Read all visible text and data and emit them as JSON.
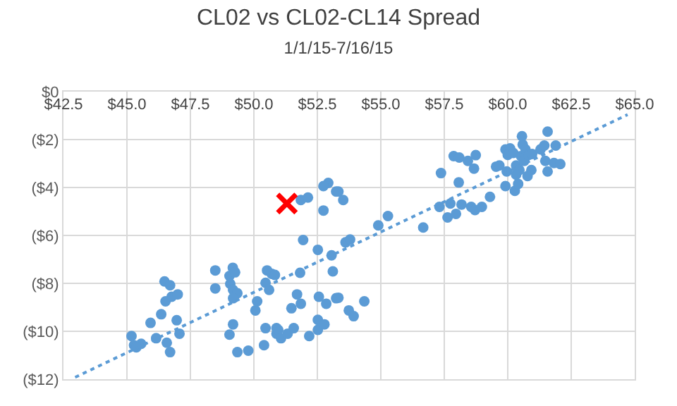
{
  "chart_data": {
    "type": "scatter",
    "title": "CL02 vs CL02-CL14 Spread",
    "subtitle": "1/1/15-7/16/15",
    "xlim": [
      42.5,
      65
    ],
    "xticks": [
      {
        "value": 42.5,
        "label": "$42.5"
      },
      {
        "value": 45,
        "label": "$45.0"
      },
      {
        "value": 47.5,
        "label": "$47.5"
      },
      {
        "value": 50,
        "label": "$50.0"
      },
      {
        "value": 52.5,
        "label": "$52.5"
      },
      {
        "value": 55,
        "label": "$55.0"
      },
      {
        "value": 57.5,
        "label": "$57.5"
      },
      {
        "value": 60,
        "label": "$60.0"
      },
      {
        "value": 62.5,
        "label": "$62.5"
      },
      {
        "value": 65,
        "label": "$65.0"
      }
    ],
    "ylim": [
      -12,
      0
    ],
    "yticks": [
      {
        "value": -12,
        "label": "($12)"
      },
      {
        "value": -10,
        "label": "($10)"
      },
      {
        "value": -8,
        "label": "($8)"
      },
      {
        "value": -6,
        "label": "($6)"
      },
      {
        "value": -4,
        "label": "($4)"
      },
      {
        "value": -2,
        "label": "($2)"
      },
      {
        "value": 0,
        "label": "$0"
      }
    ],
    "grid": true,
    "series": [
      {
        "type": "scatter",
        "marker": "circle",
        "color": "#5b9bd5",
        "x": [
          45.18,
          45.28,
          45.56,
          45.37,
          45.93,
          46.15,
          46.35,
          46.48,
          46.7,
          46.52,
          46.76,
          47.0,
          46.57,
          46.7,
          46.96,
          47.07,
          48.48,
          48.48,
          49.04,
          49.17,
          49.04,
          49.26,
          49.07,
          49.18,
          49.35,
          49.18,
          49.18,
          49.35,
          49.78,
          50.06,
          50.13,
          50.4,
          50.46,
          50.52,
          50.7,
          50.83,
          50.46,
          50.6,
          50.89,
          50.89,
          50.96,
          51.07,
          51.33,
          51.57,
          51.48,
          51.7,
          51.85,
          51.82,
          51.94,
          52.18,
          52.52,
          52.56,
          52.52,
          52.52,
          52.78,
          52.85,
          53.06,
          53.11,
          53.24,
          53.33,
          53.74,
          53.93,
          54.35,
          53.61,
          53.79,
          54.9,
          56.67,
          51.85,
          52.13,
          52.74,
          52.93,
          52.74,
          53.24,
          53.33,
          53.52,
          55.28,
          57.37,
          57.31,
          57.74,
          57.63,
          57.96,
          58.07,
          57.87,
          58.09,
          58.18,
          58.43,
          58.74,
          58.67,
          58.56,
          58.71,
          58.98,
          59.3,
          59.54,
          59.67,
          59.91,
          59.96,
          59.91,
          60.09,
          60.0,
          60.22,
          60.28,
          60.41,
          60.33,
          60.46,
          60.33,
          60.56,
          60.59,
          60.52,
          60.7,
          60.65,
          60.83,
          60.93,
          60.78,
          60.96,
          61.29,
          61.44,
          61.57,
          61.89,
          61.48,
          61.57,
          61.82,
          62.07
        ],
        "values": [
          -10.2,
          -10.58,
          -10.52,
          -10.67,
          -9.65,
          -10.29,
          -9.29,
          -7.92,
          -8.08,
          -8.75,
          -8.56,
          -8.46,
          -10.48,
          -10.87,
          -9.54,
          -10.1,
          -7.46,
          -8.21,
          -10.14,
          -7.35,
          -7.69,
          -7.54,
          -8.02,
          -8.27,
          -8.41,
          -8.62,
          -9.71,
          -10.87,
          -10.81,
          -9.13,
          -8.75,
          -10.58,
          -9.87,
          -7.46,
          -7.6,
          -7.65,
          -7.98,
          -8.27,
          -9.87,
          -10.1,
          -9.94,
          -10.29,
          -10.1,
          -9.87,
          -9.04,
          -8.46,
          -8.85,
          -7.56,
          -6.19,
          -10.2,
          -6.6,
          -8.56,
          -9.52,
          -9.94,
          -9.71,
          -8.85,
          -6.83,
          -7.5,
          -8.62,
          -8.6,
          -9.13,
          -9.37,
          -8.75,
          -6.29,
          -6.17,
          -5.58,
          -5.67,
          -4.52,
          -4.42,
          -4.96,
          -3.81,
          -3.94,
          -4.17,
          -4.17,
          -4.52,
          -5.19,
          -3.4,
          -4.81,
          -4.67,
          -5.25,
          -5.1,
          -3.79,
          -2.69,
          -2.75,
          -4.71,
          -2.89,
          -2.65,
          -3.21,
          -4.81,
          -4.94,
          -4.81,
          -4.39,
          -3.13,
          -3.08,
          -3.94,
          -3.33,
          -2.41,
          -2.37,
          -2.64,
          -2.56,
          -4.14,
          -3.85,
          -3.08,
          -3.27,
          -3.46,
          -1.86,
          -2.21,
          -2.69,
          -2.41,
          -2.89,
          -2.64,
          -3.27,
          -3.52,
          -2.6,
          -2.41,
          -2.25,
          -1.67,
          -2.25,
          -2.89,
          -3.33,
          -2.98,
          -3.02
        ]
      },
      {
        "type": "scatter",
        "marker": "cross",
        "color": "#ff0000",
        "x": [
          51.3
        ],
        "values": [
          -4.67
        ]
      },
      {
        "type": "line",
        "marker": "none",
        "line_style": "dotted",
        "color": "#5b9bd5",
        "x": [
          42.96,
          64.72
        ],
        "values": [
          -11.92,
          -0.96
        ]
      }
    ]
  }
}
